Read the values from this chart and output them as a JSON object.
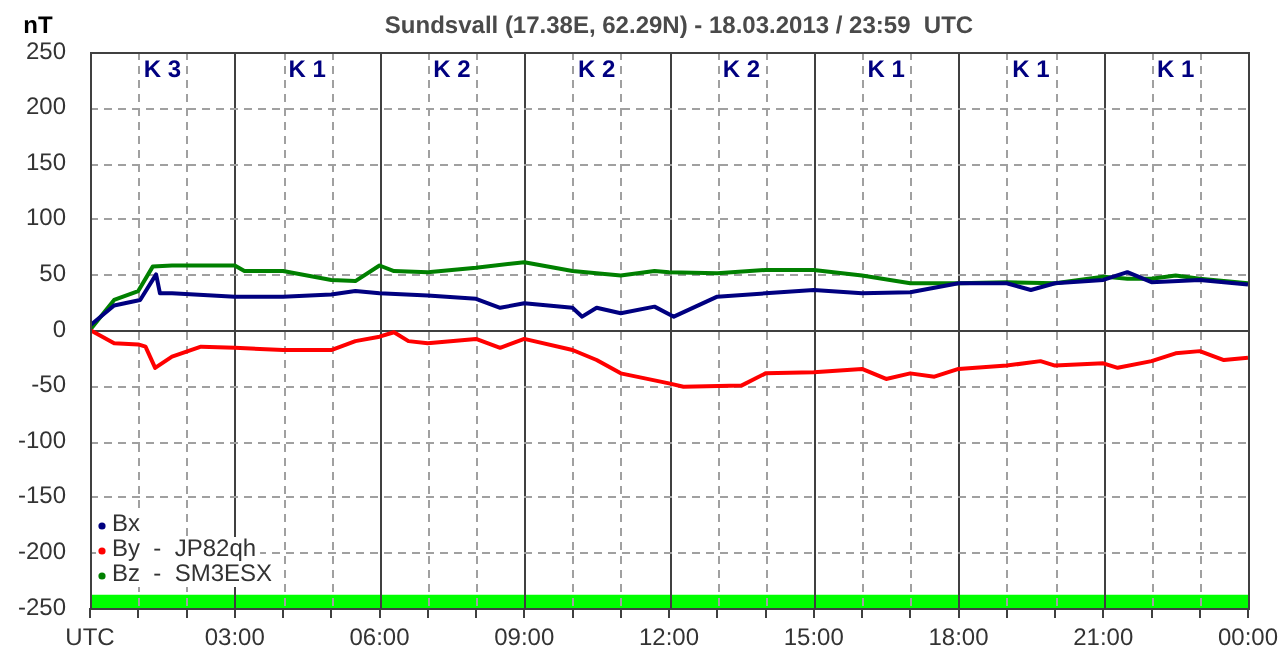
{
  "chart_data": {
    "type": "line",
    "title": "Sundsvall (17.38E, 62.29N) - 18.03.2013 / 23:59  UTC",
    "ylabel": "nT",
    "xlim": [
      0,
      24
    ],
    "xticks": [
      {
        "value": 0,
        "label": "UTC"
      },
      {
        "value": 1,
        "label": null
      },
      {
        "value": 2,
        "label": null
      },
      {
        "value": 3,
        "label": "03:00"
      },
      {
        "value": 4,
        "label": null
      },
      {
        "value": 5,
        "label": null
      },
      {
        "value": 6,
        "label": "06:00"
      },
      {
        "value": 7,
        "label": null
      },
      {
        "value": 8,
        "label": null
      },
      {
        "value": 9,
        "label": "09:00"
      },
      {
        "value": 10,
        "label": null
      },
      {
        "value": 11,
        "label": null
      },
      {
        "value": 12,
        "label": "12:00"
      },
      {
        "value": 13,
        "label": null
      },
      {
        "value": 14,
        "label": null
      },
      {
        "value": 15,
        "label": "15:00"
      },
      {
        "value": 16,
        "label": null
      },
      {
        "value": 17,
        "label": null
      },
      {
        "value": 18,
        "label": "18:00"
      },
      {
        "value": 19,
        "label": null
      },
      {
        "value": 20,
        "label": null
      },
      {
        "value": 21,
        "label": "21:00"
      },
      {
        "value": 22,
        "label": null
      },
      {
        "value": 23,
        "label": null
      },
      {
        "value": 24,
        "label": "00:00"
      }
    ],
    "ylim": [
      -250,
      250
    ],
    "yticks": [
      -250,
      -200,
      -150,
      -100,
      -50,
      0,
      50,
      100,
      150,
      200,
      250
    ],
    "grid": true,
    "legend": "bottom left",
    "marker": "none",
    "line_style": "solid",
    "bands": [
      {
        "axis": "y",
        "from": -250,
        "to": -238,
        "color": "#00ff00"
      }
    ],
    "annotations": [
      "K 3",
      "K 1",
      "K 2",
      "K 2",
      "K 2",
      "K 1",
      "K 1",
      "K 1"
    ],
    "series": [
      {
        "name": "Bx",
        "color": "#000080",
        "x": [
          0,
          0.5,
          1.04,
          1.37,
          1.45,
          1.7,
          3,
          4,
          5,
          5.5,
          6,
          7,
          8,
          8.5,
          9,
          10,
          10.2,
          10.5,
          11,
          11.7,
          12.1,
          13,
          14,
          15,
          16,
          17,
          18,
          19,
          19.5,
          20,
          21,
          21.5,
          22,
          23,
          24
        ],
        "values": [
          4,
          22,
          27,
          50,
          33,
          33,
          30,
          30,
          32,
          35,
          33,
          31,
          28,
          20,
          24,
          20,
          12,
          20,
          15,
          21,
          12,
          30,
          33,
          36,
          33,
          34,
          42,
          42,
          36,
          42,
          45,
          52,
          43,
          45,
          41
        ]
      },
      {
        "name": "By  -  JP82qh",
        "color": "#ff0000",
        "x": [
          0,
          0.5,
          1,
          1.15,
          1.35,
          1.7,
          2.3,
          3,
          4,
          5,
          5.5,
          6,
          6.3,
          6.6,
          7,
          8,
          8.5,
          9,
          10,
          10.5,
          11,
          12,
          12.3,
          13.5,
          14,
          15,
          16,
          16.5,
          17,
          17.5,
          18,
          19,
          19.7,
          20,
          21,
          21.3,
          22,
          22.5,
          23,
          23.5,
          24
        ],
        "values": [
          0,
          -12,
          -13,
          -15,
          -34,
          -24,
          -15,
          -16,
          -18,
          -18,
          -10,
          -6,
          -2,
          -10,
          -12,
          -8,
          -16,
          -8,
          -18,
          -27,
          -39,
          -48,
          -51,
          -50,
          -39,
          -38,
          -35,
          -44,
          -39,
          -42,
          -35,
          -32,
          -28,
          -32,
          -30,
          -34,
          -28,
          -21,
          -19,
          -27,
          -25
        ]
      },
      {
        "name": "Bz  -  SM3ESX",
        "color": "#008000",
        "x": [
          0,
          0.5,
          1,
          1.3,
          1.7,
          3,
          3.2,
          4,
          5,
          5.5,
          6,
          6.3,
          7,
          8,
          9,
          10,
          11,
          11.7,
          12,
          13,
          14,
          15,
          16,
          17,
          18,
          19,
          20,
          21,
          21.5,
          22,
          22.5,
          23,
          24
        ],
        "values": [
          0,
          27,
          35,
          57,
          58,
          58,
          53,
          53,
          45,
          44,
          58,
          53,
          52,
          56,
          61,
          53,
          49,
          53,
          52,
          51,
          54,
          54,
          49,
          42,
          42,
          43,
          42,
          48,
          46,
          46,
          49,
          46,
          42
        ]
      }
    ]
  }
}
